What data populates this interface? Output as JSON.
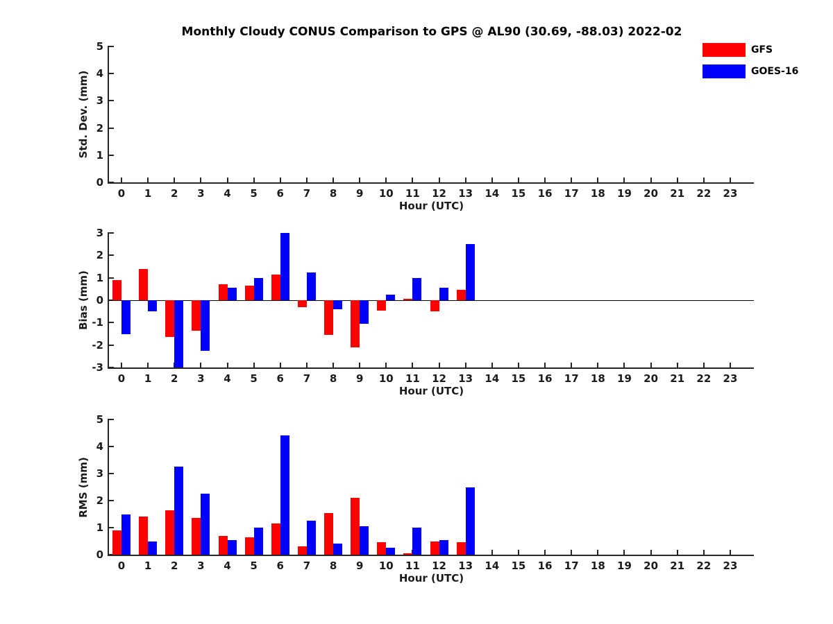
{
  "title": "Monthly Cloudy CONUS Comparison to GPS @ AL90 (30.69, -88.03) 2022-02",
  "legend": {
    "items": [
      {
        "label": "GFS",
        "color": "#ff0000"
      },
      {
        "label": "GOES-16",
        "color": "#0000ff"
      }
    ]
  },
  "colors": {
    "gfs": "#ff0000",
    "goes16": "#0000ff",
    "axis": "#262626",
    "text": "#1a1a1a"
  },
  "chart_data": [
    {
      "type": "bar",
      "panel": "std-dev",
      "ylabel": "Std. Dev. (mm)",
      "xlabel": "Hour (UTC)",
      "ylim": [
        0,
        5
      ],
      "yticks": [
        0,
        1,
        2,
        3,
        4,
        5
      ],
      "x": [
        0,
        1,
        2,
        3,
        4,
        5,
        6,
        7,
        8,
        9,
        10,
        11,
        12,
        13,
        14,
        15,
        16,
        17,
        18,
        19,
        20,
        21,
        22,
        23
      ],
      "grid": false,
      "zero_line": false,
      "series": [
        {
          "name": "GFS",
          "color": "#ff0000",
          "values": [
            0,
            0,
            0,
            0,
            0,
            0,
            0,
            0,
            0,
            0,
            0,
            0,
            0,
            0,
            null,
            null,
            null,
            null,
            null,
            null,
            null,
            null,
            null,
            null
          ]
        },
        {
          "name": "GOES-16",
          "color": "#0000ff",
          "values": [
            0,
            0,
            0,
            0,
            0,
            0,
            0,
            0,
            0,
            0,
            0,
            0,
            0,
            0,
            null,
            null,
            null,
            null,
            null,
            null,
            null,
            null,
            null,
            null
          ]
        }
      ],
      "note": "no visible bars in this panel"
    },
    {
      "type": "bar",
      "panel": "bias",
      "ylabel": "Bias (mm)",
      "xlabel": "Hour (UTC)",
      "ylim": [
        -3,
        3
      ],
      "yticks": [
        -3,
        -2,
        -1,
        0,
        1,
        2,
        3
      ],
      "x": [
        0,
        1,
        2,
        3,
        4,
        5,
        6,
        7,
        8,
        9,
        10,
        11,
        12,
        13,
        14,
        15,
        16,
        17,
        18,
        19,
        20,
        21,
        22,
        23
      ],
      "grid": false,
      "zero_line": true,
      "series": [
        {
          "name": "GFS",
          "color": "#ff0000",
          "values": [
            0.9,
            1.4,
            -1.65,
            -1.35,
            0.7,
            0.65,
            1.15,
            -0.3,
            -1.55,
            -2.1,
            -0.45,
            0.05,
            -0.5,
            0.45,
            null,
            null,
            null,
            null,
            null,
            null,
            null,
            null,
            null,
            null
          ]
        },
        {
          "name": "GOES-16",
          "color": "#0000ff",
          "values": [
            -1.5,
            -0.5,
            -3.0,
            -2.25,
            0.55,
            1.0,
            3.0,
            1.25,
            -0.4,
            -1.05,
            0.25,
            1.0,
            0.55,
            2.5,
            null,
            null,
            null,
            null,
            null,
            null,
            null,
            null,
            null,
            null
          ]
        }
      ],
      "note": "GOES-16 bars at hours 2 and 6 reach the axis limits (clipped)"
    },
    {
      "type": "bar",
      "panel": "rms",
      "ylabel": "RMS (mm)",
      "xlabel": "Hour (UTC)",
      "ylim": [
        0,
        5
      ],
      "yticks": [
        0,
        1,
        2,
        3,
        4,
        5
      ],
      "x": [
        0,
        1,
        2,
        3,
        4,
        5,
        6,
        7,
        8,
        9,
        10,
        11,
        12,
        13,
        14,
        15,
        16,
        17,
        18,
        19,
        20,
        21,
        22,
        23
      ],
      "grid": false,
      "zero_line": false,
      "series": [
        {
          "name": "GFS",
          "color": "#ff0000",
          "values": [
            0.9,
            1.4,
            1.65,
            1.35,
            0.7,
            0.65,
            1.15,
            0.3,
            1.55,
            2.1,
            0.45,
            0.05,
            0.5,
            0.45,
            null,
            null,
            null,
            null,
            null,
            null,
            null,
            null,
            null,
            null
          ]
        },
        {
          "name": "GOES-16",
          "color": "#0000ff",
          "values": [
            1.5,
            0.5,
            3.25,
            2.25,
            0.55,
            1.0,
            4.4,
            1.25,
            0.4,
            1.05,
            0.25,
            1.0,
            0.55,
            2.5,
            null,
            null,
            null,
            null,
            null,
            null,
            null,
            null,
            null,
            null
          ]
        }
      ]
    }
  ]
}
